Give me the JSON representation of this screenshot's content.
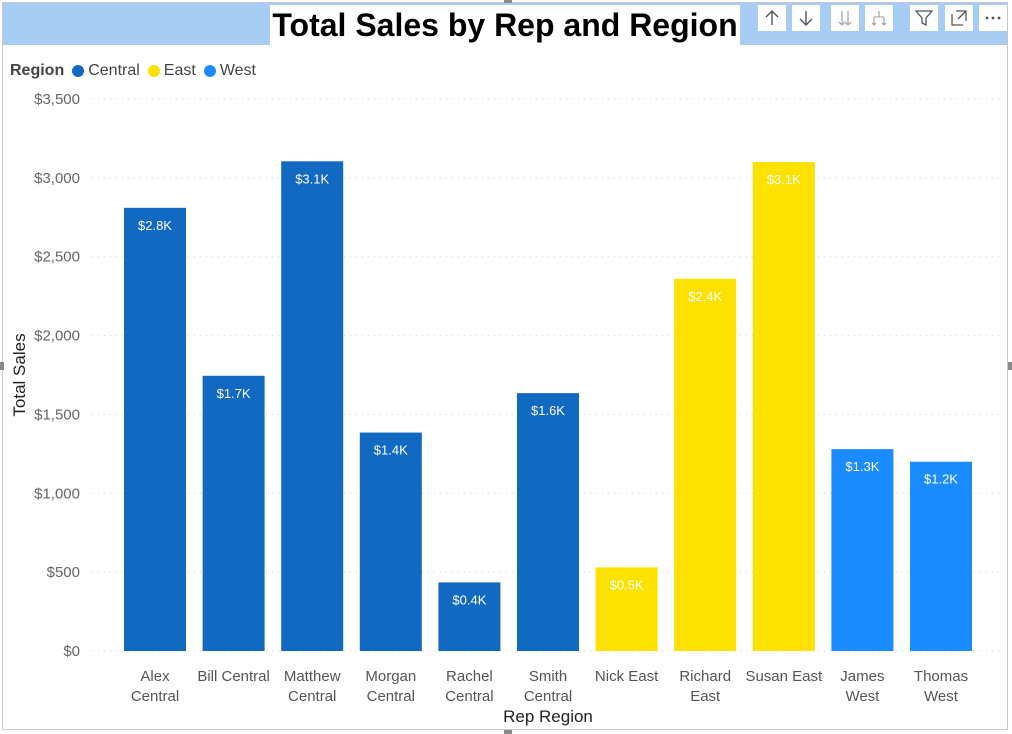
{
  "title": "Total Sales by Rep and Region",
  "toolbar": {
    "icons": [
      "arrow-up-icon",
      "arrow-down-icon",
      "double-arrow-down-icon",
      "fork-down-icon",
      "filter-icon",
      "focus-mode-icon",
      "more-options-icon"
    ]
  },
  "legend": {
    "title": "Region",
    "items": [
      {
        "label": "Central",
        "color": "#1169c1"
      },
      {
        "label": "East",
        "color": "#fde100"
      },
      {
        "label": "West",
        "color": "#1a8cff"
      }
    ]
  },
  "chart_data": {
    "type": "bar",
    "title": "Total Sales by Rep and Region",
    "xlabel": "Rep Region",
    "ylabel": "Total Sales",
    "ylim": [
      0,
      3500
    ],
    "yticks": [
      0,
      500,
      1000,
      1500,
      2000,
      2500,
      3000,
      3500
    ],
    "ytick_labels": [
      "$0",
      "$500",
      "$1,000",
      "$1,500",
      "$2,000",
      "$2,500",
      "$3,000",
      "$3,500"
    ],
    "grid": true,
    "legend_position": "top-left",
    "categories": [
      {
        "line1": "Alex",
        "line2": "Central",
        "region": "Central"
      },
      {
        "line1": "Bill Central",
        "line2": "",
        "region": "Central"
      },
      {
        "line1": "Matthew",
        "line2": "Central",
        "region": "Central"
      },
      {
        "line1": "Morgan",
        "line2": "Central",
        "region": "Central"
      },
      {
        "line1": "Rachel",
        "line2": "Central",
        "region": "Central"
      },
      {
        "line1": "Smith",
        "line2": "Central",
        "region": "Central"
      },
      {
        "line1": "Nick East",
        "line2": "",
        "region": "East"
      },
      {
        "line1": "Richard",
        "line2": "East",
        "region": "East"
      },
      {
        "line1": "Susan East",
        "line2": "",
        "region": "East"
      },
      {
        "line1": "James",
        "line2": "West",
        "region": "West"
      },
      {
        "line1": "Thomas",
        "line2": "West",
        "region": "West"
      }
    ],
    "values": [
      2810,
      1745,
      3105,
      1385,
      435,
      1635,
      530,
      2360,
      3100,
      1280,
      1200
    ],
    "data_labels": [
      "$2.8K",
      "$1.7K",
      "$3.1K",
      "$1.4K",
      "$0.4K",
      "$1.6K",
      "$0.5K",
      "$2.4K",
      "$3.1K",
      "$1.3K",
      "$1.2K"
    ],
    "region_colors": {
      "Central": "#1169c1",
      "East": "#fde100",
      "West": "#1a8cff"
    }
  }
}
